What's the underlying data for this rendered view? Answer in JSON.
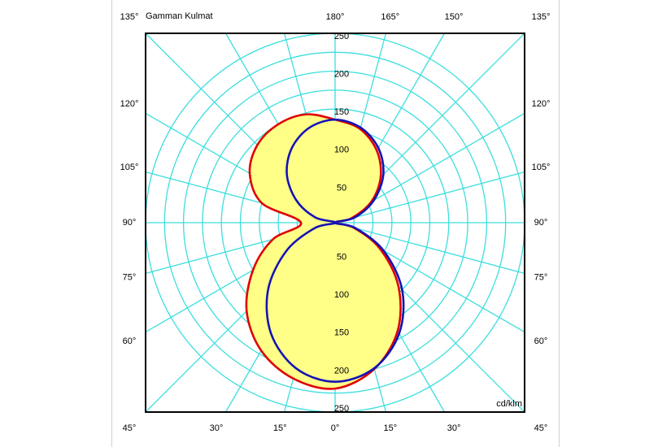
{
  "chart_data": {
    "type": "polar",
    "title": "Gamman Kulmat",
    "unit_label": "cd/klm",
    "rlim": [
      0,
      250
    ],
    "rticks": [
      50,
      100,
      150,
      200,
      250
    ],
    "rgrid": [
      25,
      50,
      75,
      100,
      125,
      150,
      175,
      200,
      225,
      250
    ],
    "agrid": [
      -165,
      -150,
      -135,
      -120,
      -105,
      -90,
      -75,
      -60,
      -45,
      -30,
      -15,
      0,
      15,
      30,
      45,
      60,
      75,
      90,
      105,
      120,
      135,
      150,
      165,
      180
    ],
    "aticks": [
      {
        "value": -45,
        "label": "45°"
      },
      {
        "value": -30,
        "label": "30°"
      },
      {
        "value": -15,
        "label": "15°"
      },
      {
        "value": 0,
        "label": "0°"
      },
      {
        "value": 15,
        "label": "15°"
      },
      {
        "value": 30,
        "label": "30°"
      },
      {
        "value": 45,
        "label": "45°"
      },
      {
        "value": -60,
        "label": "60°"
      },
      {
        "value": -75,
        "label": "75°"
      },
      {
        "value": -90,
        "label": "90°"
      },
      {
        "value": -105,
        "label": "105°"
      },
      {
        "value": -120,
        "label": "120°"
      },
      {
        "value": 60,
        "label": "60°"
      },
      {
        "value": 75,
        "label": "75°"
      },
      {
        "value": 90,
        "label": "90°"
      },
      {
        "value": 105,
        "label": "105°"
      },
      {
        "value": 120,
        "label": "120°"
      },
      {
        "value": -135,
        "label": "135°"
      },
      {
        "value": 180,
        "label": "180°"
      },
      {
        "value": 165,
        "label": "165°"
      },
      {
        "value": 150,
        "label": "150°"
      },
      {
        "value": 135,
        "label": "135°"
      }
    ],
    "x": [
      -180,
      -165,
      -150,
      -135,
      -120,
      -105,
      -90,
      -75,
      -60,
      -45,
      -30,
      -15,
      0,
      15,
      30,
      45,
      60,
      75,
      90,
      105,
      120,
      135,
      150,
      165,
      180
    ],
    "series": [
      {
        "color": "#e00000",
        "fill": "#ffff88",
        "values": [
          136,
          148,
          150,
          145,
          130,
          100,
          45,
          85,
          125,
          165,
          195,
          213,
          219,
          200,
          165,
          118,
          68,
          25,
          0,
          22,
          55,
          85,
          110,
          128,
          136
        ]
      },
      {
        "color": "#1414b4",
        "values": [
          136,
          130,
          114,
          90,
          59,
          27,
          0,
          28,
          74,
          125,
          169,
          199,
          210,
          199,
          169,
          125,
          74,
          28,
          0,
          27,
          59,
          90,
          114,
          130,
          136
        ]
      }
    ]
  }
}
